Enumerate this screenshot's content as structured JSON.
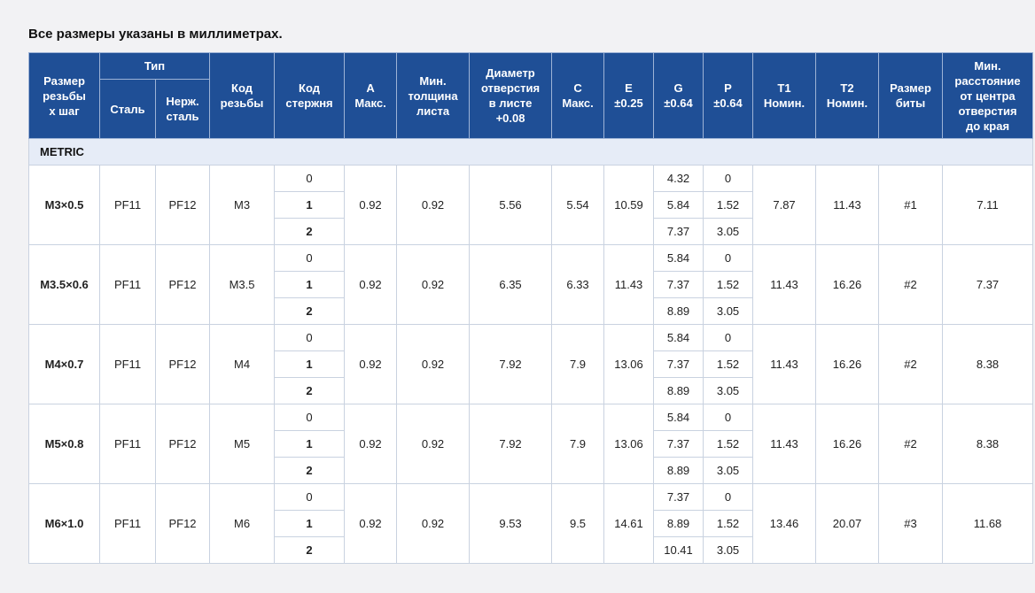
{
  "caption": "Все размеры указаны в миллиметрах.",
  "headers": {
    "size": [
      "Размер",
      "резьбы",
      "x шаг"
    ],
    "type": "Тип",
    "steel": "Сталь",
    "stainless": [
      "Нерж.",
      "сталь"
    ],
    "thread_code": [
      "Код",
      "резьбы"
    ],
    "rod_code": [
      "Код",
      "стержня"
    ],
    "a": [
      "A",
      "Макс."
    ],
    "min_thickness": [
      "Мин.",
      "толщина",
      "листа"
    ],
    "hole_dia": [
      "Диаметр",
      "отверстия",
      "в листе",
      "+0.08"
    ],
    "c": [
      "C",
      "Макс."
    ],
    "e": [
      "E",
      "±0.25"
    ],
    "g": [
      "G",
      "±0.64"
    ],
    "p": [
      "P",
      "±0.64"
    ],
    "t1": [
      "T1",
      "Номин."
    ],
    "t2": [
      "T2",
      "Номин."
    ],
    "bit": [
      "Размер",
      "биты"
    ],
    "min_dist": [
      "Мин.",
      "расстояние",
      "от центра",
      "отверстия",
      "до края"
    ]
  },
  "section": "METRIC",
  "rows": [
    {
      "size": "M3×0.5",
      "steel": "PF11",
      "stainless": "PF12",
      "thread": "M3",
      "a": "0.92",
      "min_t": "0.92",
      "hole": "5.56",
      "c": "5.54",
      "e": "10.59",
      "t1": "7.87",
      "t2": "11.43",
      "bit": "#1",
      "dist": "7.11",
      "sub": [
        {
          "rod": "0",
          "g": "4.32",
          "p": "0"
        },
        {
          "rod": "1",
          "g": "5.84",
          "p": "1.52"
        },
        {
          "rod": "2",
          "g": "7.37",
          "p": "3.05"
        }
      ]
    },
    {
      "size": "M3.5×0.6",
      "steel": "PF11",
      "stainless": "PF12",
      "thread": "M3.5",
      "a": "0.92",
      "min_t": "0.92",
      "hole": "6.35",
      "c": "6.33",
      "e": "11.43",
      "t1": "11.43",
      "t2": "16.26",
      "bit": "#2",
      "dist": "7.37",
      "sub": [
        {
          "rod": "0",
          "g": "5.84",
          "p": "0"
        },
        {
          "rod": "1",
          "g": "7.37",
          "p": "1.52"
        },
        {
          "rod": "2",
          "g": "8.89",
          "p": "3.05"
        }
      ]
    },
    {
      "size": "M4×0.7",
      "steel": "PF11",
      "stainless": "PF12",
      "thread": "M4",
      "a": "0.92",
      "min_t": "0.92",
      "hole": "7.92",
      "c": "7.9",
      "e": "13.06",
      "t1": "11.43",
      "t2": "16.26",
      "bit": "#2",
      "dist": "8.38",
      "sub": [
        {
          "rod": "0",
          "g": "5.84",
          "p": "0"
        },
        {
          "rod": "1",
          "g": "7.37",
          "p": "1.52"
        },
        {
          "rod": "2",
          "g": "8.89",
          "p": "3.05"
        }
      ]
    },
    {
      "size": "M5×0.8",
      "steel": "PF11",
      "stainless": "PF12",
      "thread": "M5",
      "a": "0.92",
      "min_t": "0.92",
      "hole": "7.92",
      "c": "7.9",
      "e": "13.06",
      "t1": "11.43",
      "t2": "16.26",
      "bit": "#2",
      "dist": "8.38",
      "sub": [
        {
          "rod": "0",
          "g": "5.84",
          "p": "0"
        },
        {
          "rod": "1",
          "g": "7.37",
          "p": "1.52"
        },
        {
          "rod": "2",
          "g": "8.89",
          "p": "3.05"
        }
      ]
    },
    {
      "size": "M6×1.0",
      "steel": "PF11",
      "stainless": "PF12",
      "thread": "M6",
      "a": "0.92",
      "min_t": "0.92",
      "hole": "9.53",
      "c": "9.5",
      "e": "14.61",
      "t1": "13.46",
      "t2": "20.07",
      "bit": "#3",
      "dist": "11.68",
      "sub": [
        {
          "rod": "0",
          "g": "7.37",
          "p": "0"
        },
        {
          "rod": "1",
          "g": "8.89",
          "p": "1.52"
        },
        {
          "rod": "2",
          "g": "10.41",
          "p": "3.05"
        }
      ]
    }
  ]
}
